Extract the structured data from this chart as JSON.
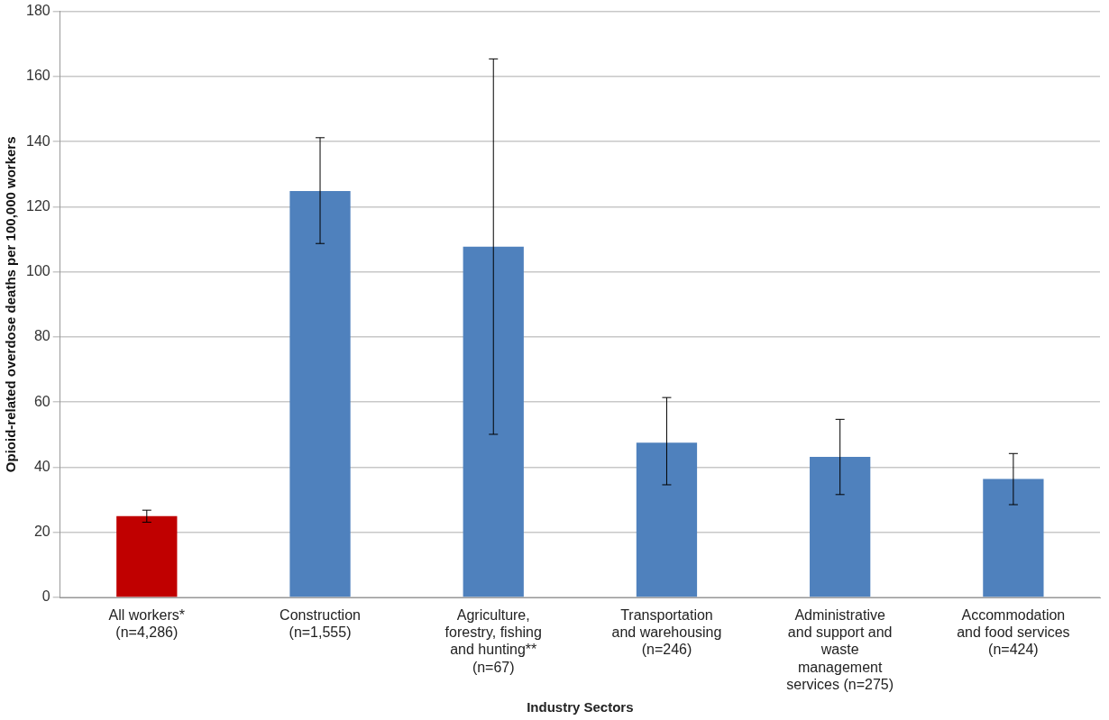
{
  "chart_data": {
    "type": "bar",
    "xlabel": "Industry Sectors",
    "ylabel": "Opioid-related overdose deaths per 100,000 workers",
    "categories": [
      "All workers*\n(n=4,286)",
      "Construction\n(n=1,555)",
      "Agriculture,\nforestry, fishing\nand hunting**\n(n=67)",
      "Transportation\nand warehousing\n(n=246)",
      "Administrative\nand support and\nwaste\nmanagement\nservices (n=275)",
      "Accommodation\nand food services\n(n=424)"
    ],
    "values": [
      25,
      124.8,
      107.7,
      47.5,
      43.2,
      36.4
    ],
    "colors": [
      "#c00000",
      "#4f81bd",
      "#4f81bd",
      "#4f81bd",
      "#4f81bd",
      "#4f81bd"
    ],
    "errors": [
      [
        23.1,
        26.8
      ],
      [
        108.7,
        141.2
      ],
      [
        50.1,
        165.4
      ],
      [
        34.6,
        61.4
      ],
      [
        31.6,
        54.7
      ],
      [
        28.5,
        44.2
      ]
    ],
    "ylim": [
      0,
      180
    ],
    "yticks": [
      0,
      20,
      40,
      60,
      80,
      100,
      120,
      140,
      160,
      180
    ],
    "grid": "y",
    "legend": false
  }
}
